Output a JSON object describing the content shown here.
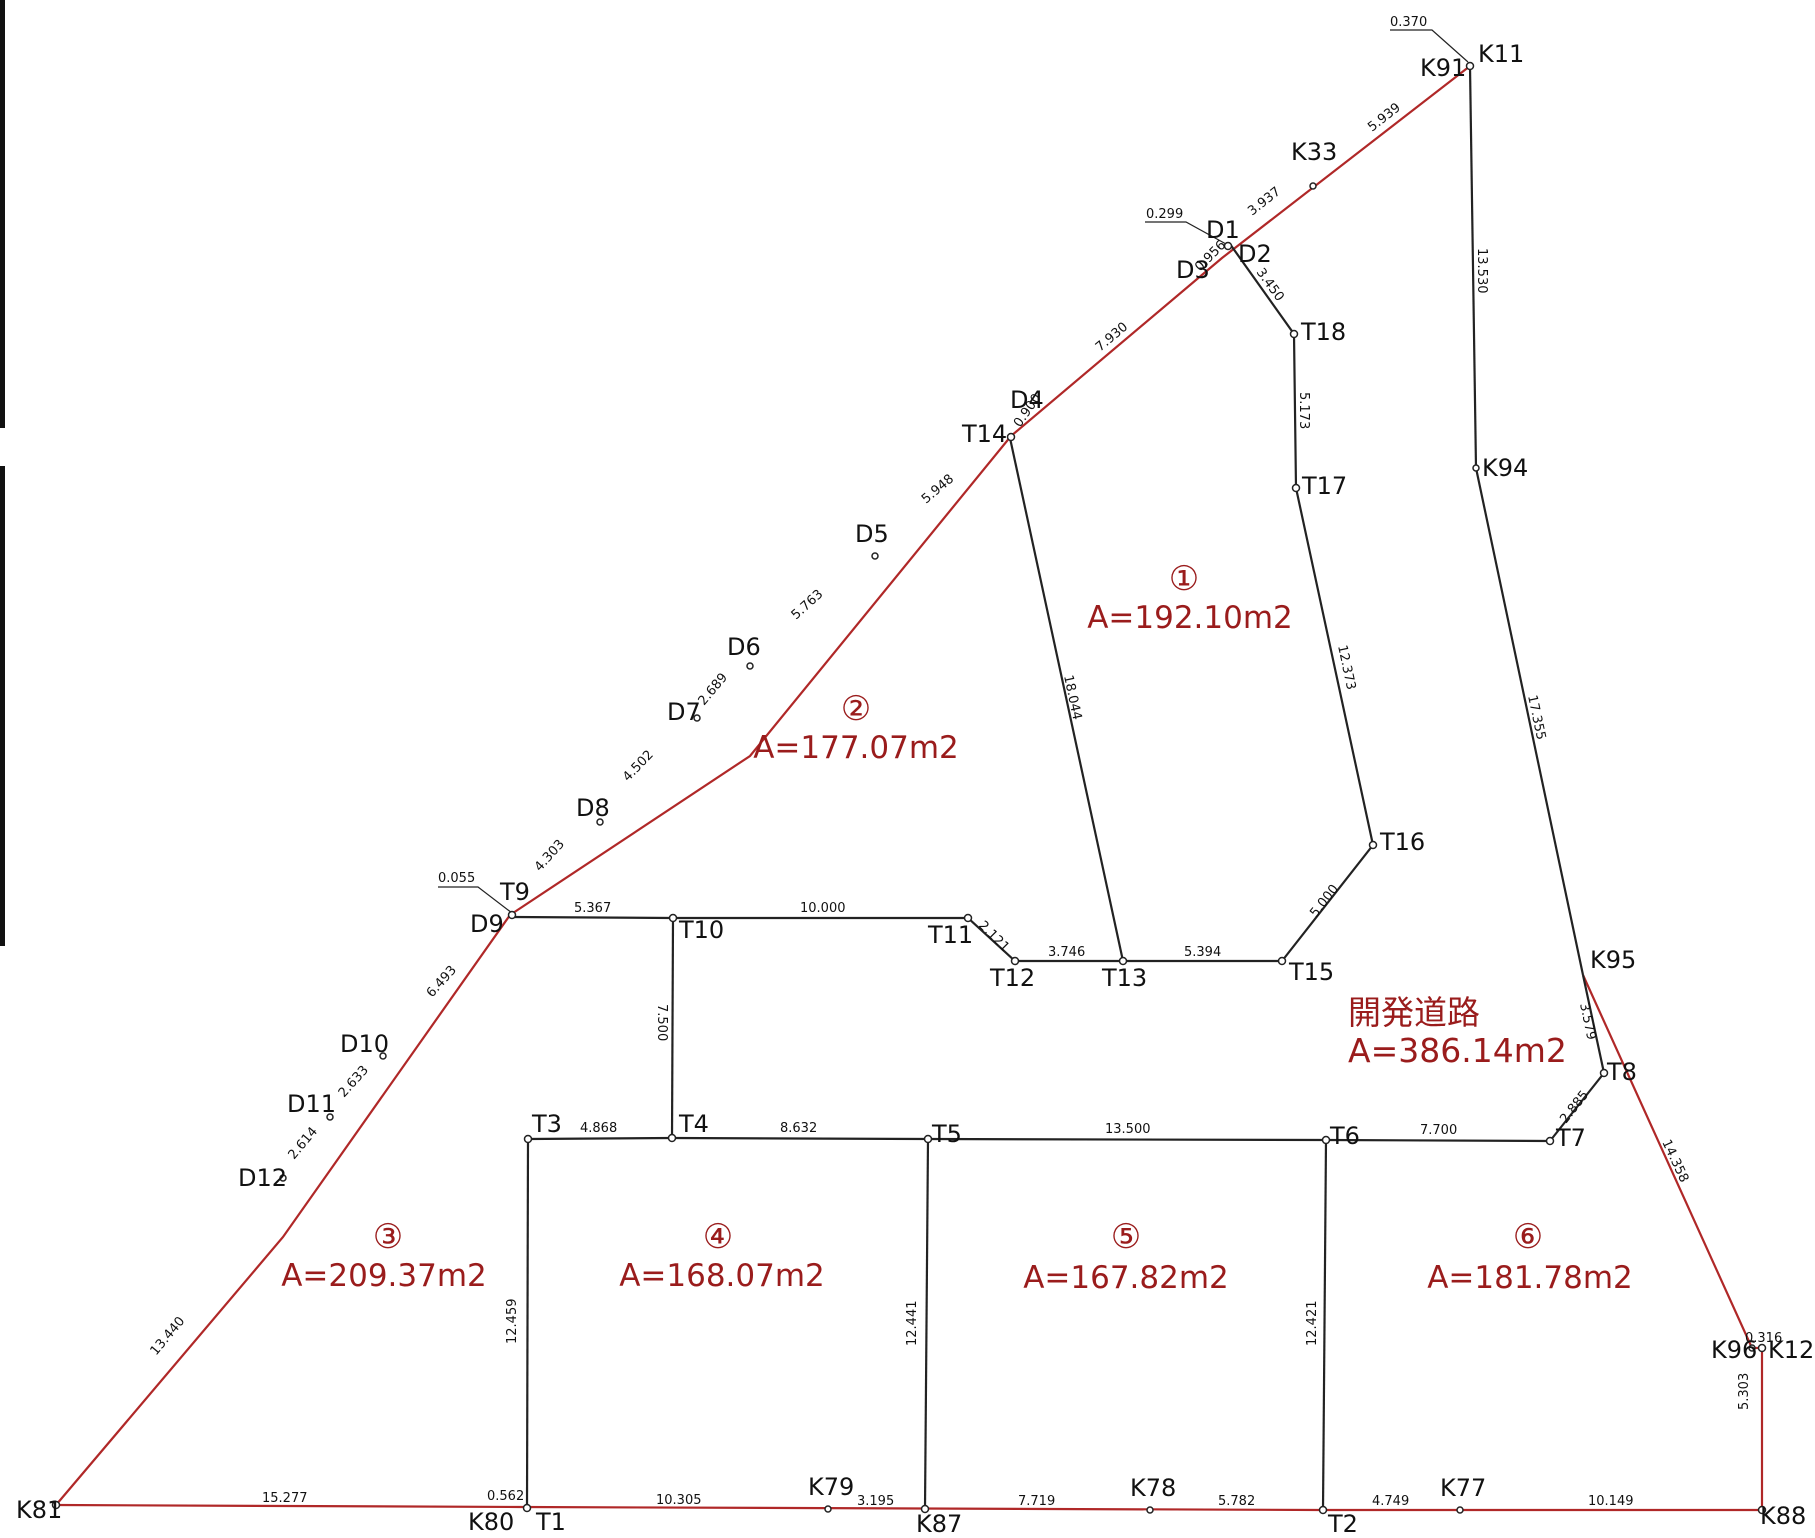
{
  "points": {
    "K11": "K11",
    "K91": "K91",
    "K33": "K33",
    "D1": "D1",
    "D2": "D2",
    "D3": "D3",
    "T18": "T18",
    "T17": "T17",
    "D4": "D4",
    "T14": "T14",
    "D5": "D5",
    "D6": "D6",
    "D7": "D7",
    "D8": "D8",
    "T9": "T9",
    "D9": "D9",
    "T10": "T10",
    "T11": "T11",
    "T12": "T12",
    "T13": "T13",
    "T15": "T15",
    "T16": "T16",
    "K94": "K94",
    "K95": "K95",
    "T8": "T8",
    "T7": "T7",
    "T6": "T6",
    "T5": "T5",
    "T4": "T4",
    "T3": "T3",
    "D10": "D10",
    "D11": "D11",
    "D12": "D12",
    "K81": "K81",
    "K80": "K80",
    "T1": "T1",
    "K79": "K79",
    "K87": "K87",
    "K78": "K78",
    "T2": "T2",
    "K77": "K77",
    "K88": "K88",
    "K96": "K96",
    "K12": "K12"
  },
  "dimensions": {
    "k91_k33": "5.939",
    "k33_d1": "3.937",
    "d1_offset": "0.299",
    "k11_offset": "0.370",
    "d3_d2": "0.956",
    "d2_t18": "3.450",
    "t18_t17": "5.173",
    "d3_d4": "7.930",
    "d4_t14": "0.900",
    "t14_d5": "5.948",
    "d5_d6": "5.763",
    "d6_d7": "2.689",
    "d7_d8": "4.502",
    "d8_t9": "4.303",
    "t9_offset": "0.055",
    "d9_d10": "6.493",
    "d10_d11": "2.633",
    "d11_d12": "2.614",
    "d12_k81": "13.440",
    "t9_t10": "5.367",
    "t10_t11": "10.000",
    "t11_t12": "2.121",
    "t12_t13": "3.746",
    "t13_t15": "5.394",
    "t15_t16": "5.000",
    "t16_t17": "12.373",
    "t14_t13": "18.044",
    "k11_k94": "13.530",
    "k94_k95": "17.355",
    "k95_t8": "3.579",
    "t8_t7": "2.885",
    "t8_k96": "14.358",
    "k96_k12": "0.316",
    "k12_k88": "5.303",
    "t10_t4": "7.500",
    "t3_t4": "4.868",
    "t4_t5": "8.632",
    "t5_t6": "13.500",
    "t6_t7": "7.700",
    "t3_t1": "12.459",
    "t5_k87": "12.441",
    "t6_t2": "12.421",
    "k81_k80": "15.277",
    "k80_t1": "0.562",
    "t1_k79": "10.305",
    "k79_k87": "3.195",
    "k87_k78": "7.719",
    "k78_t2": "5.782",
    "t2_k77": "4.749",
    "k77_k88": "10.149"
  },
  "lots": [
    {
      "num": "①",
      "area": "A=192.10m2"
    },
    {
      "num": "②",
      "area": "A=177.07m2"
    },
    {
      "num": "③",
      "area": "A=209.37m2"
    },
    {
      "num": "④",
      "area": "A=168.07m2"
    },
    {
      "num": "⑤",
      "area": "A=167.82m2"
    },
    {
      "num": "⑥",
      "area": "A=181.78m2"
    }
  ],
  "road": {
    "name": "開発道路",
    "area": "A=386.14m2"
  },
  "colors": {
    "boundary": "#b02828",
    "lot_text": "#9a1c1c",
    "line": "#222222"
  }
}
